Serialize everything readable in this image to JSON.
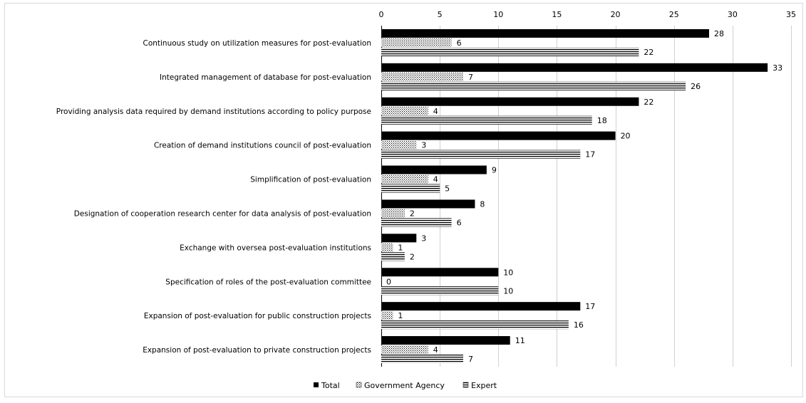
{
  "chart_data": {
    "type": "bar",
    "orientation": "horizontal",
    "title": "",
    "xlabel": "",
    "ylabel": "",
    "xlim": [
      0,
      35
    ],
    "x_ticks": [
      0,
      5,
      10,
      15,
      20,
      25,
      30,
      35
    ],
    "x_axis_position": "top",
    "grid": true,
    "legend_position": "bottom",
    "categories": [
      "Continuous study on utilization measures for post-evaluation",
      "Integrated management of database for post-evaluation",
      "Providing analysis data required by demand institutions according to policy purpose",
      "Creation of demand institutions council of post-evaluation",
      "Simplification of post-evaluation",
      "Designation of cooperation research center for data analysis of post-evaluation",
      "Exchange with oversea post-evaluation institutions",
      "Specification of roles of the post-evaluation committee",
      "Expansion of post-evaluation for public construction projects",
      "Expansion of post-evaluation to private construction projects"
    ],
    "series": [
      {
        "name": "Total",
        "pattern": "solid",
        "color": "#000000",
        "values": [
          28,
          33,
          22,
          20,
          9,
          8,
          3,
          10,
          17,
          11
        ]
      },
      {
        "name": "Government Agency",
        "pattern": "dots",
        "color": "#000000",
        "values": [
          6,
          7,
          4,
          3,
          4,
          2,
          1,
          0,
          1,
          4
        ]
      },
      {
        "name": "Expert",
        "pattern": "horizontal-lines",
        "color": "#000000",
        "values": [
          22,
          26,
          18,
          17,
          5,
          6,
          2,
          10,
          16,
          7
        ]
      }
    ]
  }
}
